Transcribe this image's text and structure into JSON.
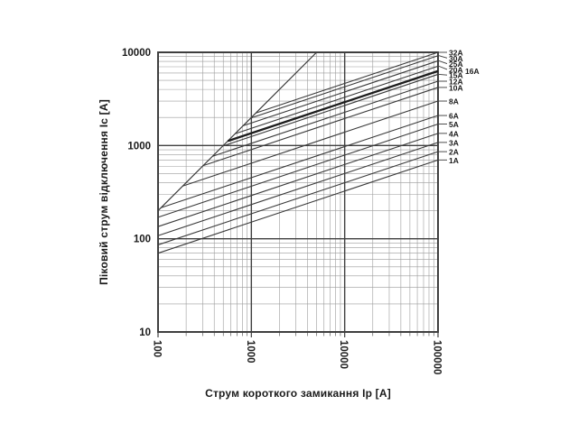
{
  "page": {
    "background": "#ffffff",
    "description": "Fuse current-limiting (peak let-through) characteristic chart"
  },
  "chart_data": {
    "type": "line",
    "title": "",
    "xlabel": "Струм короткого замикання Ip [A]",
    "ylabel": "Піковий струм відключення Ic [A]",
    "x_axis": {
      "scale": "log",
      "min": 100,
      "max": 100000,
      "ticks": [
        "100",
        "1000",
        "10000",
        "100000"
      ],
      "tick_rotation_deg": 90
    },
    "y_axis": {
      "scale": "log",
      "min": 10,
      "max": 10000,
      "ticks": [
        "10000",
        "1000",
        "100",
        "10"
      ]
    },
    "grid": {
      "major": true,
      "minor": true,
      "minor_divisions": [
        2,
        3,
        4,
        5,
        6,
        7,
        8,
        9
      ]
    },
    "prospective_line": {
      "name": "peak-prospective-current-line",
      "slope_decades_per_decade": 1,
      "factor": 2,
      "from_xy": [
        100,
        200
      ],
      "to_xy": [
        5000,
        10000
      ]
    },
    "curve_model": {
      "slope_decades_per_decade": 0.33333,
      "note": "Ic proportional to Ip^(1/3); each curve branches off the prospective line where 2*Ip equals its let-through value"
    },
    "series": [
      {
        "label": "32A",
        "ic_at_100kA": 10000,
        "bold": false
      },
      {
        "label": "30A",
        "ic_at_100kA": 9200,
        "bold": false
      },
      {
        "label": "25A",
        "ic_at_100kA": 8100,
        "bold": false
      },
      {
        "label": "20A",
        "ic_at_100kA": 7100,
        "bold": false
      },
      {
        "label": "16A",
        "ic_at_100kA": 6300,
        "bold": true,
        "label_offset_x": 18,
        "no_leader": true
      },
      {
        "label": "15A",
        "ic_at_100kA": 5800,
        "bold": false
      },
      {
        "label": "12A",
        "ic_at_100kA": 4900,
        "bold": false
      },
      {
        "label": "10A",
        "ic_at_100kA": 4200,
        "bold": false
      },
      {
        "label": "8A",
        "ic_at_100kA": 3000,
        "bold": false
      },
      {
        "label": "6A",
        "ic_at_100kA": 2100,
        "bold": false
      },
      {
        "label": "5A",
        "ic_at_100kA": 1700,
        "bold": false
      },
      {
        "label": "4A",
        "ic_at_100kA": 1350,
        "bold": false
      },
      {
        "label": "3A",
        "ic_at_100kA": 1080,
        "bold": false
      },
      {
        "label": "2A",
        "ic_at_100kA": 860,
        "bold": false
      },
      {
        "label": "1A",
        "ic_at_100kA": 700,
        "bold": false
      }
    ],
    "colors": {
      "background": "#ffffff",
      "grid_minor": "#9b9b9b",
      "grid_major": "#3f3f3f",
      "border": "#3f3f3f",
      "curve": "#3a3a3a",
      "curve_bold": "#1d1d1d",
      "leader": "#3a3a3a",
      "text": "#1a1a1a"
    }
  }
}
